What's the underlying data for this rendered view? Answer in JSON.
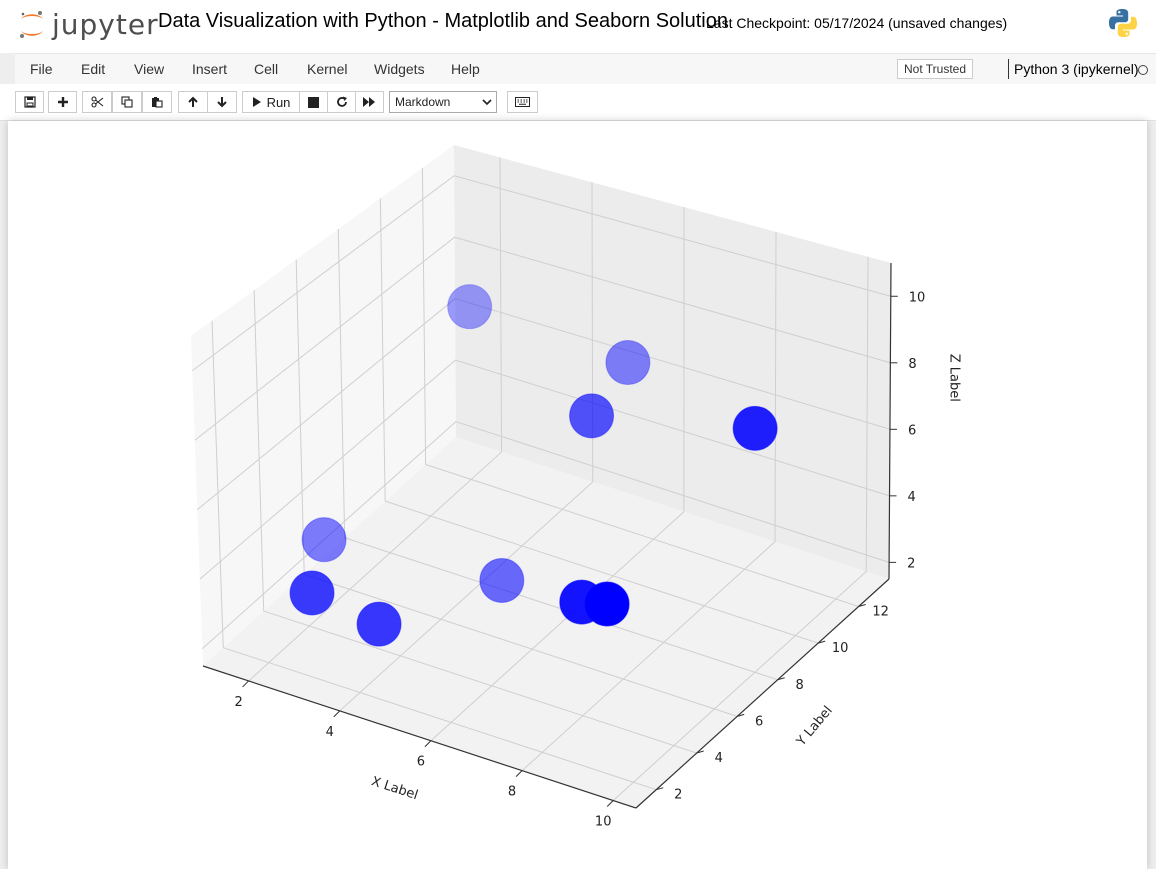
{
  "header": {
    "logo_text": "jupyter",
    "notebook_title": "Data Visualization with Python - Matplotlib and Seaborn Solution",
    "checkpoint": "Last Checkpoint: 05/17/2024  (unsaved changes)"
  },
  "menu": {
    "items": [
      "File",
      "Edit",
      "View",
      "Insert",
      "Cell",
      "Kernel",
      "Widgets",
      "Help"
    ],
    "trust_status": "Not Trusted",
    "kernel_name": "Python 3 (ipykernel)"
  },
  "toolbar": {
    "run_label": "Run",
    "cell_type": "Markdown",
    "icons": [
      "save-icon",
      "add-cell-icon",
      "cut-icon",
      "copy-icon",
      "paste-icon",
      "move-up-icon",
      "move-down-icon",
      "run-icon",
      "stop-icon",
      "restart-icon",
      "fast-forward-icon",
      "keyboard-icon"
    ]
  },
  "colors": {
    "marker": "#0000ff",
    "header_bg": "#ffffff",
    "menubar_bg": "#f7f7f7",
    "jupyter_orange": "#f37726"
  },
  "chart_data": {
    "type": "scatter",
    "projection": "3d",
    "xlabel": "X Label",
    "ylabel": "Y Label",
    "zlabel": "Z Label",
    "x_ticks": [
      2,
      4,
      6,
      8,
      10
    ],
    "y_ticks": [
      2,
      4,
      6,
      8,
      10,
      12
    ],
    "z_ticks": [
      2,
      4,
      6,
      8,
      10
    ],
    "xlim": [
      1,
      10.5
    ],
    "ylim": [
      1,
      13.5
    ],
    "zlim": [
      1.5,
      11
    ],
    "grid": true,
    "points": [
      {
        "x": 3,
        "y": 2,
        "z": 4
      },
      {
        "x": 4,
        "y": 3,
        "z": 3
      },
      {
        "x": 1,
        "y": 7,
        "z": 2
      },
      {
        "x": 4,
        "y": 9,
        "z": 1
      },
      {
        "x": 6,
        "y": 9,
        "z": 7
      },
      {
        "x": 8,
        "y": 4,
        "z": 5
      },
      {
        "x": 5,
        "y": 13,
        "z": 6
      },
      {
        "x": 9,
        "y": 3,
        "z": 6
      },
      {
        "x": 2,
        "y": 12,
        "z": 7
      },
      {
        "x": 10,
        "y": 8,
        "z": 9
      }
    ]
  }
}
